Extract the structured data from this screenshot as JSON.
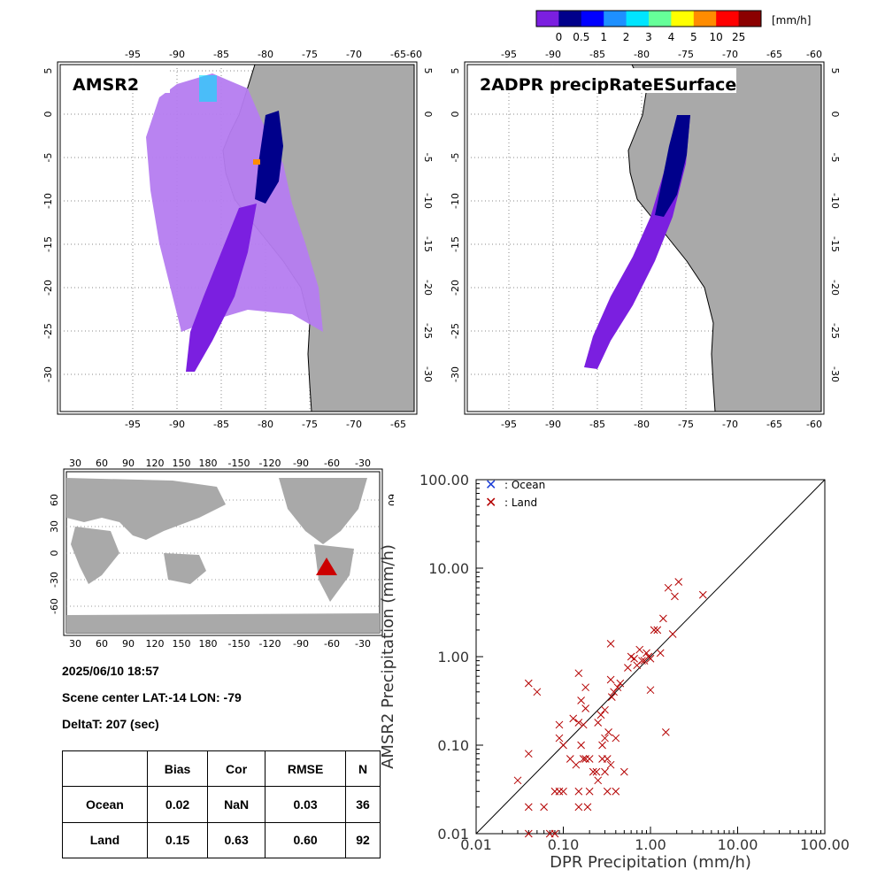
{
  "colorbar": {
    "unit": "[mm/h]",
    "labels": [
      "0",
      "0.5",
      "1",
      "2",
      "3",
      "4",
      "5",
      "10",
      "25"
    ],
    "colors": [
      "#7b1fe0",
      "#00008b",
      "#0000ff",
      "#1e90ff",
      "#00e5ff",
      "#66ff99",
      "#ffff00",
      "#ff8c00",
      "#ff0000",
      "#8b0000"
    ]
  },
  "colors": {
    "land": "#a9a9a9",
    "ocean": "#ffffff",
    "light_precip": "#b57cf0",
    "swath_low": "#7b1fe0",
    "marker_ocean": "#1c3fd8",
    "marker_land": "#b40000",
    "scene_marker": "#cc0000"
  },
  "map_left": {
    "title": "AMSR2",
    "lon_ticks": [
      "-95",
      "-90",
      "-85",
      "-80",
      "-75",
      "-70",
      "-65",
      "-60"
    ],
    "lat_ticks": [
      "5",
      "0",
      "-5",
      "-10",
      "-15",
      "-20",
      "-25",
      "-30"
    ]
  },
  "map_right": {
    "title": "2ADPR precipRateESurface",
    "lon_ticks": [
      "-95",
      "-90",
      "-85",
      "-80",
      "-75",
      "-70",
      "-65",
      "-60"
    ],
    "lat_ticks": [
      "5",
      "0",
      "-5",
      "-10",
      "-15",
      "-20",
      "-25",
      "-30"
    ]
  },
  "world_map": {
    "lon_ticks": [
      "30",
      "60",
      "90",
      "120",
      "150",
      "180",
      "-150",
      "-120",
      "-90",
      "-60",
      "-30"
    ],
    "lat_ticks": [
      "60",
      "30",
      "0",
      "-30",
      "-60"
    ]
  },
  "info": {
    "datetime": "2025/06/10 18:57",
    "scene_center": "Scene center LAT:-14   LON: -79",
    "delta_t": "DeltaT:  207 (sec)"
  },
  "stats_table": {
    "headers": [
      "",
      "Bias",
      "Cor",
      "RMSE",
      "N"
    ],
    "rows": [
      [
        "Ocean",
        "0.02",
        "NaN",
        "0.03",
        "36"
      ],
      [
        "Land",
        "0.15",
        "0.63",
        "0.60",
        "92"
      ]
    ]
  },
  "chart_data": {
    "type": "scatter",
    "xlabel": "DPR Precipitation (mm/h)",
    "ylabel": "AMSR2 Precipitation (mm/h)",
    "xscale": "log",
    "yscale": "log",
    "xlim": [
      0.01,
      100
    ],
    "ylim": [
      0.01,
      100
    ],
    "x_tick_labels": [
      "0.01",
      "0.10",
      "1.00",
      "10.00",
      "100.00"
    ],
    "y_tick_labels": [
      "0.01",
      "0.10",
      "1.00",
      "10.00",
      "100.00"
    ],
    "reference_line": "1:1",
    "legend": {
      "position": "top-left",
      "entries": [
        ": Ocean",
        ": Land"
      ]
    },
    "series": [
      {
        "name": ": Ocean",
        "marker": "x",
        "points": []
      },
      {
        "name": ": Land",
        "marker": "x",
        "points": [
          [
            0.03,
            0.04
          ],
          [
            0.04,
            0.02
          ],
          [
            0.04,
            0.08
          ],
          [
            0.04,
            0.5
          ],
          [
            0.05,
            0.4
          ],
          [
            0.04,
            0.01
          ],
          [
            0.06,
            0.02
          ],
          [
            0.07,
            0.01
          ],
          [
            0.08,
            0.01
          ],
          [
            0.08,
            0.03
          ],
          [
            0.09,
            0.03
          ],
          [
            0.09,
            0.17
          ],
          [
            0.09,
            0.12
          ],
          [
            0.1,
            0.1
          ],
          [
            0.1,
            0.03
          ],
          [
            0.12,
            0.07
          ],
          [
            0.13,
            0.2
          ],
          [
            0.14,
            0.06
          ],
          [
            0.15,
            0.02
          ],
          [
            0.15,
            0.03
          ],
          [
            0.15,
            0.65
          ],
          [
            0.15,
            0.18
          ],
          [
            0.16,
            0.1
          ],
          [
            0.16,
            0.32
          ],
          [
            0.17,
            0.17
          ],
          [
            0.17,
            0.07
          ],
          [
            0.18,
            0.07
          ],
          [
            0.18,
            0.45
          ],
          [
            0.18,
            0.26
          ],
          [
            0.19,
            0.02
          ],
          [
            0.2,
            0.03
          ],
          [
            0.2,
            0.07
          ],
          [
            0.22,
            0.05
          ],
          [
            0.24,
            0.05
          ],
          [
            0.25,
            0.04
          ],
          [
            0.25,
            0.18
          ],
          [
            0.27,
            0.22
          ],
          [
            0.28,
            0.1
          ],
          [
            0.28,
            0.07
          ],
          [
            0.3,
            0.12
          ],
          [
            0.3,
            0.25
          ],
          [
            0.3,
            0.05
          ],
          [
            0.32,
            0.03
          ],
          [
            0.32,
            0.07
          ],
          [
            0.33,
            0.14
          ],
          [
            0.35,
            0.06
          ],
          [
            0.35,
            1.4
          ],
          [
            0.35,
            0.55
          ],
          [
            0.36,
            0.35
          ],
          [
            0.38,
            0.4
          ],
          [
            0.4,
            0.03
          ],
          [
            0.4,
            0.12
          ],
          [
            0.42,
            0.45
          ],
          [
            0.45,
            0.5
          ],
          [
            0.5,
            0.05
          ],
          [
            0.55,
            0.75
          ],
          [
            0.6,
            1.0
          ],
          [
            0.65,
            0.95
          ],
          [
            0.7,
            0.8
          ],
          [
            0.75,
            1.2
          ],
          [
            0.8,
            0.9
          ],
          [
            0.85,
            0.9
          ],
          [
            0.9,
            1.1
          ],
          [
            0.95,
            1.0
          ],
          [
            1.0,
            0.42
          ],
          [
            1.0,
            0.95
          ],
          [
            1.1,
            2.0
          ],
          [
            1.2,
            2.0
          ],
          [
            1.3,
            1.1
          ],
          [
            1.4,
            2.7
          ],
          [
            1.5,
            0.14
          ],
          [
            1.6,
            6.0
          ],
          [
            1.8,
            1.8
          ],
          [
            1.9,
            4.8
          ],
          [
            2.1,
            7.0
          ],
          [
            4.0,
            5.0
          ]
        ]
      }
    ]
  }
}
